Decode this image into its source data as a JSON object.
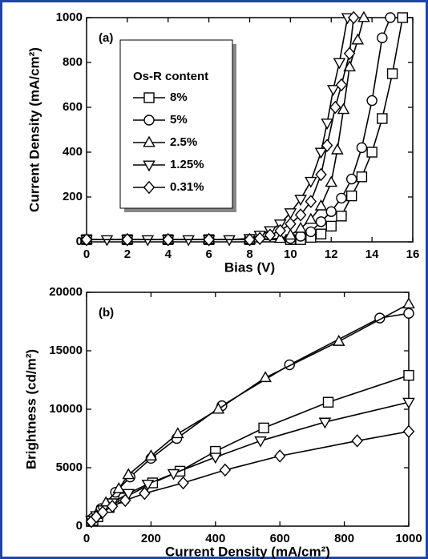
{
  "chart_data": [
    {
      "type": "line",
      "panel_label": "(a)",
      "xlabel": "Bias  (V)",
      "ylabel": "Current Density  (mA/cm²)",
      "xlim": [
        0,
        16
      ],
      "xticks": [
        0,
        2,
        4,
        6,
        8,
        10,
        12,
        14,
        16
      ],
      "ylim": [
        0,
        1000
      ],
      "yticks": [
        0,
        200,
        400,
        600,
        800,
        1000
      ],
      "legend": "upper left",
      "legend_title": "Os-R content",
      "series": [
        {
          "name": "8%",
          "marker": "square",
          "color": "#000000",
          "x": [
            0,
            2,
            4,
            6,
            8,
            10,
            10.5,
            11,
            11.5,
            12,
            12.5,
            13,
            13.5,
            14,
            14.5,
            15,
            15.5
          ],
          "values": [
            10,
            10,
            10,
            10,
            10,
            10,
            10,
            20,
            35,
            70,
            115,
            205,
            290,
            400,
            550,
            750,
            1000
          ]
        },
        {
          "name": "5%",
          "marker": "circle",
          "color": "#000000",
          "x": [
            0,
            2,
            4,
            6,
            8,
            10,
            10.5,
            11,
            11.5,
            12,
            12.5,
            13,
            13.5,
            14,
            14.5,
            14.9
          ],
          "values": [
            10,
            10,
            10,
            10,
            10,
            15,
            25,
            45,
            90,
            135,
            195,
            280,
            420,
            630,
            910,
            1000
          ]
        },
        {
          "name": "2.5%",
          "marker": "triangle-up",
          "color": "#000000",
          "x": [
            0,
            2,
            4,
            6,
            8,
            9.5,
            10,
            10.5,
            11,
            11.5,
            12,
            12.3,
            12.6,
            12.9,
            13.3,
            13.6
          ],
          "values": [
            10,
            10,
            10,
            10,
            10,
            15,
            30,
            60,
            100,
            160,
            265,
            410,
            590,
            780,
            900,
            1000
          ]
        },
        {
          "name": "1.25%",
          "marker": "triangle-down",
          "color": "#000000",
          "x": [
            0,
            1,
            2,
            3,
            4,
            5,
            6,
            7,
            8,
            8.5,
            9,
            9.5,
            10,
            10.5,
            11,
            11.5,
            11.8,
            12.1,
            12.4,
            12.8
          ],
          "values": [
            10,
            10,
            10,
            10,
            10,
            10,
            10,
            10,
            15,
            30,
            50,
            80,
            130,
            190,
            270,
            400,
            530,
            680,
            800,
            1000
          ]
        },
        {
          "name": "0.31%",
          "marker": "diamond",
          "color": "#000000",
          "x": [
            0,
            2,
            4,
            6,
            8,
            8.5,
            9,
            9.5,
            10,
            10.5,
            11,
            11.5,
            11.8,
            12.2,
            12.5,
            12.9,
            13.1
          ],
          "values": [
            10,
            10,
            10,
            10,
            10,
            15,
            30,
            50,
            80,
            120,
            180,
            300,
            430,
            600,
            700,
            840,
            1000
          ]
        }
      ]
    },
    {
      "type": "line",
      "panel_label": "(b)",
      "xlabel": "Current Density  (mA/cm²)",
      "ylabel": "Brightness  (cd/m²)",
      "xlim": [
        0,
        1000
      ],
      "xticks": [
        0,
        200,
        400,
        600,
        800,
        1000
      ],
      "ylim": [
        0,
        20000
      ],
      "yticks": [
        0,
        5000,
        10000,
        15000,
        20000
      ],
      "series": [
        {
          "marker": "square",
          "color": "#000000",
          "x": [
            20,
            35,
            70,
            115,
            205,
            290,
            400,
            550,
            750,
            1000
          ],
          "values": [
            500,
            800,
            1600,
            2400,
            3700,
            4700,
            6400,
            8400,
            10600,
            12900
          ]
        },
        {
          "marker": "circle",
          "color": "#000000",
          "x": [
            20,
            45,
            90,
            135,
            200,
            280,
            420,
            630,
            910,
            1000
          ],
          "values": [
            700,
            1500,
            2900,
            4200,
            5800,
            7500,
            10300,
            13800,
            17800,
            18200
          ]
        },
        {
          "marker": "triangle-up",
          "color": "#000000",
          "x": [
            30,
            60,
            100,
            130,
            200,
            283,
            409,
            555,
            783,
            1000
          ],
          "values": [
            1000,
            2000,
            3200,
            4400,
            6000,
            7900,
            10000,
            12700,
            15800,
            19000
          ]
        },
        {
          "marker": "triangle-down",
          "color": "#000000",
          "x": [
            15,
            30,
            50,
            80,
            130,
            190,
            270,
            400,
            540,
            740,
            1000
          ],
          "values": [
            500,
            900,
            1400,
            2000,
            2800,
            3600,
            4500,
            5900,
            7300,
            8900,
            10600
          ]
        },
        {
          "marker": "diamond",
          "color": "#000000",
          "x": [
            15,
            30,
            50,
            80,
            120,
            180,
            300,
            430,
            600,
            840,
            1000
          ],
          "values": [
            400,
            800,
            1200,
            1700,
            2200,
            2800,
            3700,
            4800,
            6000,
            7300,
            8100
          ]
        }
      ]
    }
  ]
}
